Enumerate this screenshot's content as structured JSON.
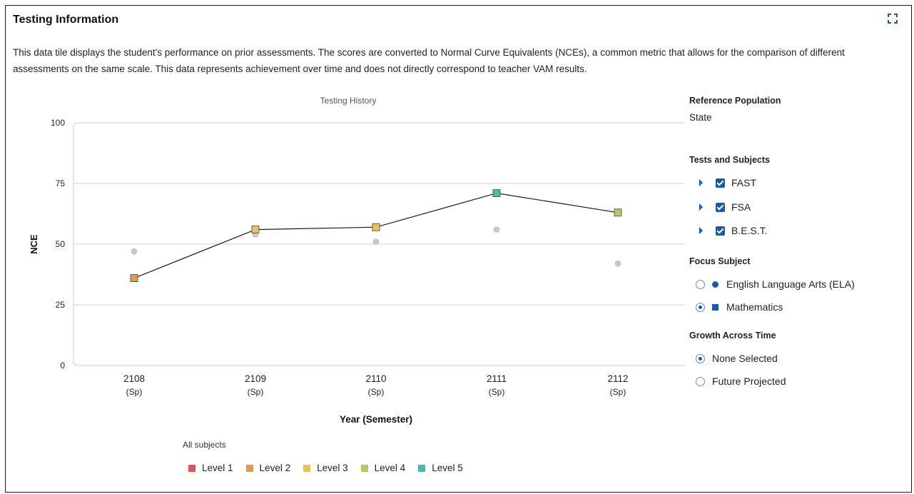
{
  "tile": {
    "title": "Testing Information",
    "description": "This data tile displays the student's performance on prior assessments. The scores are converted to Normal Curve Equivalents (NCEs), a common metric that allows for the comparison of different assessments on the same scale. This data represents achievement over time and does not directly correspond to teacher VAM results.",
    "expand_icon": "expand-icon"
  },
  "sidebar": {
    "reference_population_label": "Reference Population",
    "reference_population_value": "State",
    "tests_subjects_label": "Tests and Subjects",
    "tests": [
      {
        "label": "FAST",
        "checked": true
      },
      {
        "label": "FSA",
        "checked": true
      },
      {
        "label": "B.E.S.T.",
        "checked": true
      }
    ],
    "focus_subject_label": "Focus Subject",
    "focus_subjects": [
      {
        "label": "English Language Arts (ELA)",
        "selected": false,
        "marker": "circle"
      },
      {
        "label": "Mathematics",
        "selected": true,
        "marker": "square"
      }
    ],
    "growth_label": "Growth Across Time",
    "growth_options": [
      {
        "label": "None Selected",
        "selected": true
      },
      {
        "label": "Future Projected",
        "selected": false
      }
    ]
  },
  "legend": {
    "title": "All subjects",
    "items": [
      {
        "label": "Level 1",
        "color": "#d9575b"
      },
      {
        "label": "Level 2",
        "color": "#e09a5a"
      },
      {
        "label": "Level 3",
        "color": "#e8c25a"
      },
      {
        "label": "Level 4",
        "color": "#b5c96a"
      },
      {
        "label": "Level 5",
        "color": "#4fb8ad"
      }
    ]
  },
  "chart_data": {
    "type": "line",
    "title": "Testing History",
    "xlabel": "Year (Semester)",
    "ylabel": "NCE",
    "ylim": [
      0,
      100
    ],
    "yticks": [
      0,
      25,
      50,
      75,
      100
    ],
    "grid": true,
    "categories": [
      {
        "year": "2108",
        "term": "(Sp)"
      },
      {
        "year": "2109",
        "term": "(Sp)"
      },
      {
        "year": "2110",
        "term": "(Sp)"
      },
      {
        "year": "2111",
        "term": "(Sp)"
      },
      {
        "year": "2112",
        "term": "(Sp)"
      }
    ],
    "series": [
      {
        "subject": "Mathematics",
        "marker": "square",
        "line_color": "#1a1a1a",
        "values": [
          36,
          56,
          57,
          71,
          63
        ],
        "levels": [
          2,
          3,
          3,
          5,
          4
        ]
      },
      {
        "subject": "English Language Arts (ELA)",
        "marker": "circle",
        "color": "#c8c8c8",
        "values": [
          47,
          54,
          51,
          56,
          42
        ]
      }
    ]
  }
}
